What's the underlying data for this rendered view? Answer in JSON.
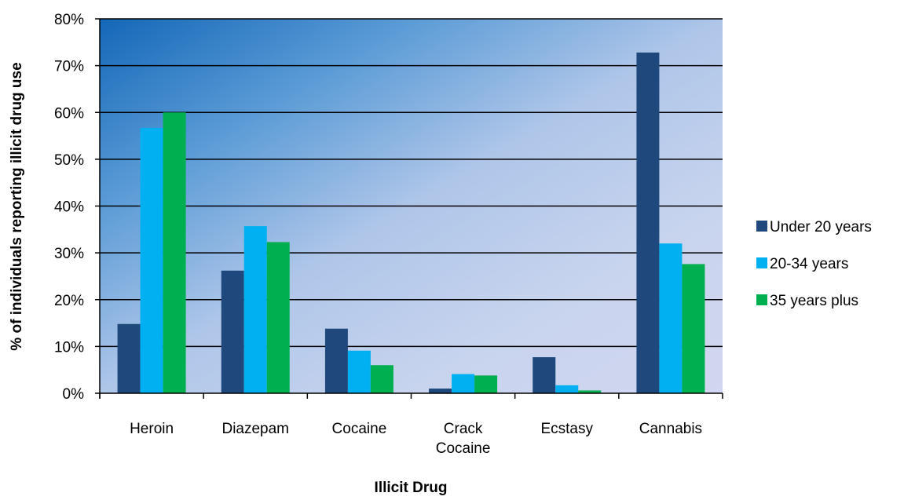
{
  "chart_data": {
    "type": "bar",
    "title": "",
    "xlabel": "Illicit Drug",
    "ylabel": "% of individuals reporting illicit drug use",
    "ylim": [
      0,
      80
    ],
    "ytick_labels": [
      "0%",
      "10%",
      "20%",
      "30%",
      "40%",
      "50%",
      "60%",
      "70%",
      "80%"
    ],
    "categories": [
      [
        "Heroin"
      ],
      [
        "Diazepam"
      ],
      [
        "Cocaine"
      ],
      [
        "Crack",
        "Cocaine"
      ],
      [
        "Ecstasy"
      ],
      [
        "Cannabis"
      ]
    ],
    "series": [
      {
        "name": "Under 20 years",
        "color": "#1F497D",
        "values": [
          14.8,
          26.2,
          13.8,
          1.0,
          7.7,
          72.8
        ]
      },
      {
        "name": "20-34 years",
        "color": "#00B0F0",
        "values": [
          56.7,
          35.7,
          9.1,
          4.1,
          1.7,
          32.0
        ]
      },
      {
        "name": "35 years plus",
        "color": "#00B050",
        "values": [
          60.0,
          32.3,
          6.0,
          3.8,
          0.6,
          27.6
        ]
      }
    ],
    "grid": true,
    "legend_position": "right",
    "plot_background": "gradient from dark blue (top-left) to light lavender (bottom-right)"
  }
}
